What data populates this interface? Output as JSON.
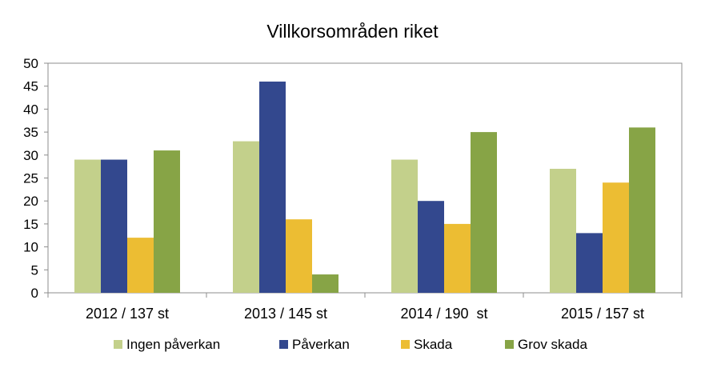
{
  "chart_data": {
    "type": "bar",
    "title": "Villkorsområden riket",
    "xlabel": "",
    "ylabel": "",
    "ylim": [
      0,
      50
    ],
    "yticks": [
      0,
      5,
      10,
      15,
      20,
      25,
      30,
      35,
      40,
      45,
      50
    ],
    "categories": [
      "2012 / 137 st",
      "2013 / 145 st",
      "2014 / 190  st",
      "2015 / 157 st"
    ],
    "series": [
      {
        "name": "Ingen påverkan",
        "color": "#c3d08b",
        "values": [
          29,
          33,
          29,
          27
        ]
      },
      {
        "name": "Påverkan",
        "color": "#33488e",
        "values": [
          29,
          46,
          20,
          13
        ]
      },
      {
        "name": "Skada",
        "color": "#ecbd33",
        "values": [
          12,
          16,
          15,
          24
        ]
      },
      {
        "name": "Grov skada",
        "color": "#87a446",
        "values": [
          31,
          4,
          35,
          36
        ]
      }
    ],
    "grid": false,
    "legend": "bottom"
  }
}
